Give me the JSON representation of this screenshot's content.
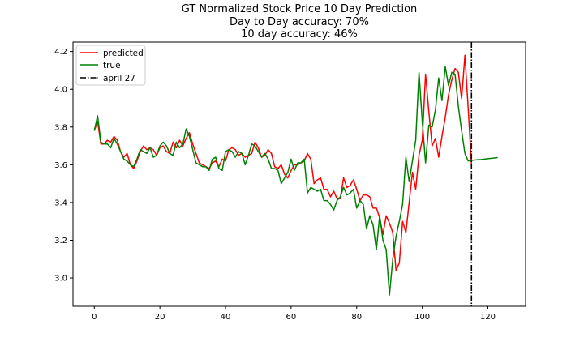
{
  "chart_data": {
    "type": "line",
    "title": "GT Normalized Stock Price 10 Day Prediction",
    "subtitle_lines": [
      "Day to Day accuracy: 70%",
      "10 day accuracy: 46%"
    ],
    "xlabel": "",
    "ylabel": "",
    "xlim": [
      -6.5,
      131.5
    ],
    "ylim": [
      2.85,
      4.25
    ],
    "x_ticks": [
      0,
      20,
      40,
      60,
      80,
      100,
      120
    ],
    "y_ticks": [
      3.0,
      3.2,
      3.4,
      3.6,
      3.8,
      4.0,
      4.2
    ],
    "y_tick_labels": [
      "3.0",
      "3.2",
      "3.4",
      "3.6",
      "3.8",
      "4.0",
      "4.2"
    ],
    "grid": false,
    "legend_placement": "upper-left",
    "series": [
      {
        "name": "predicted",
        "color": "#ff0000",
        "y": [
          3.78,
          3.83,
          3.71,
          3.71,
          3.73,
          3.72,
          3.75,
          3.73,
          3.67,
          3.64,
          3.66,
          3.6,
          3.58,
          3.62,
          3.67,
          3.7,
          3.68,
          3.69,
          3.68,
          3.65,
          3.69,
          3.7,
          3.67,
          3.66,
          3.72,
          3.69,
          3.73,
          3.7,
          3.74,
          3.77,
          3.71,
          3.66,
          3.61,
          3.6,
          3.59,
          3.58,
          3.61,
          3.62,
          3.59,
          3.63,
          3.62,
          3.68,
          3.69,
          3.68,
          3.65,
          3.66,
          3.64,
          3.65,
          3.66,
          3.72,
          3.69,
          3.64,
          3.65,
          3.68,
          3.66,
          3.59,
          3.58,
          3.6,
          3.55,
          3.53,
          3.57,
          3.6,
          3.6,
          3.61,
          3.62,
          3.66,
          3.63,
          3.5,
          3.52,
          3.53,
          3.47,
          3.47,
          3.43,
          3.46,
          3.42,
          3.42,
          3.53,
          3.48,
          3.49,
          3.52,
          3.47,
          3.41,
          3.44,
          3.44,
          3.43,
          3.37,
          3.37,
          3.32,
          3.23,
          3.33,
          3.29,
          3.24,
          3.04,
          3.08,
          3.3,
          3.24,
          3.4,
          3.56,
          3.47,
          3.65,
          3.73,
          4.08,
          3.88,
          3.7,
          3.74,
          3.64,
          3.75,
          3.85,
          3.97,
          4.05,
          4.11,
          4.09,
          3.95,
          4.18,
          3.9,
          3.6
        ],
        "future_y": []
      },
      {
        "name": "true",
        "color": "#008000",
        "y": [
          3.78,
          3.86,
          3.72,
          3.71,
          3.71,
          3.69,
          3.74,
          3.71,
          3.67,
          3.63,
          3.62,
          3.6,
          3.59,
          3.63,
          3.68,
          3.67,
          3.66,
          3.69,
          3.64,
          3.65,
          3.7,
          3.72,
          3.7,
          3.66,
          3.65,
          3.72,
          3.69,
          3.71,
          3.79,
          3.75,
          3.68,
          3.61,
          3.6,
          3.59,
          3.59,
          3.57,
          3.63,
          3.64,
          3.58,
          3.57,
          3.67,
          3.68,
          3.67,
          3.64,
          3.67,
          3.66,
          3.6,
          3.65,
          3.71,
          3.7,
          3.67,
          3.64,
          3.66,
          3.63,
          3.58,
          3.58,
          3.57,
          3.5,
          3.53,
          3.56,
          3.63,
          3.57,
          3.61,
          3.61,
          3.63,
          3.45,
          3.48,
          3.47,
          3.46,
          3.47,
          3.41,
          3.41,
          3.39,
          3.36,
          3.41,
          3.43,
          3.48,
          3.44,
          3.45,
          3.47,
          3.37,
          3.41,
          3.39,
          3.26,
          3.33,
          3.28,
          3.15,
          3.33,
          3.2,
          3.15,
          2.91,
          3.1,
          3.22,
          3.3,
          3.39,
          3.64,
          3.51,
          3.62,
          3.73,
          4.09,
          3.83,
          3.61,
          3.81,
          3.8,
          3.89,
          4.06,
          3.94,
          4.12,
          4.02,
          4.09,
          4.08,
          3.91,
          3.78,
          3.66
        ],
        "future_y": [
          3.62,
          3.623,
          3.625,
          3.627,
          3.628,
          3.63,
          3.632,
          3.634,
          3.636,
          3.638
        ]
      }
    ],
    "vline": {
      "name": "april 27",
      "x": 115,
      "color": "#000000",
      "style": "dash-dot"
    }
  }
}
